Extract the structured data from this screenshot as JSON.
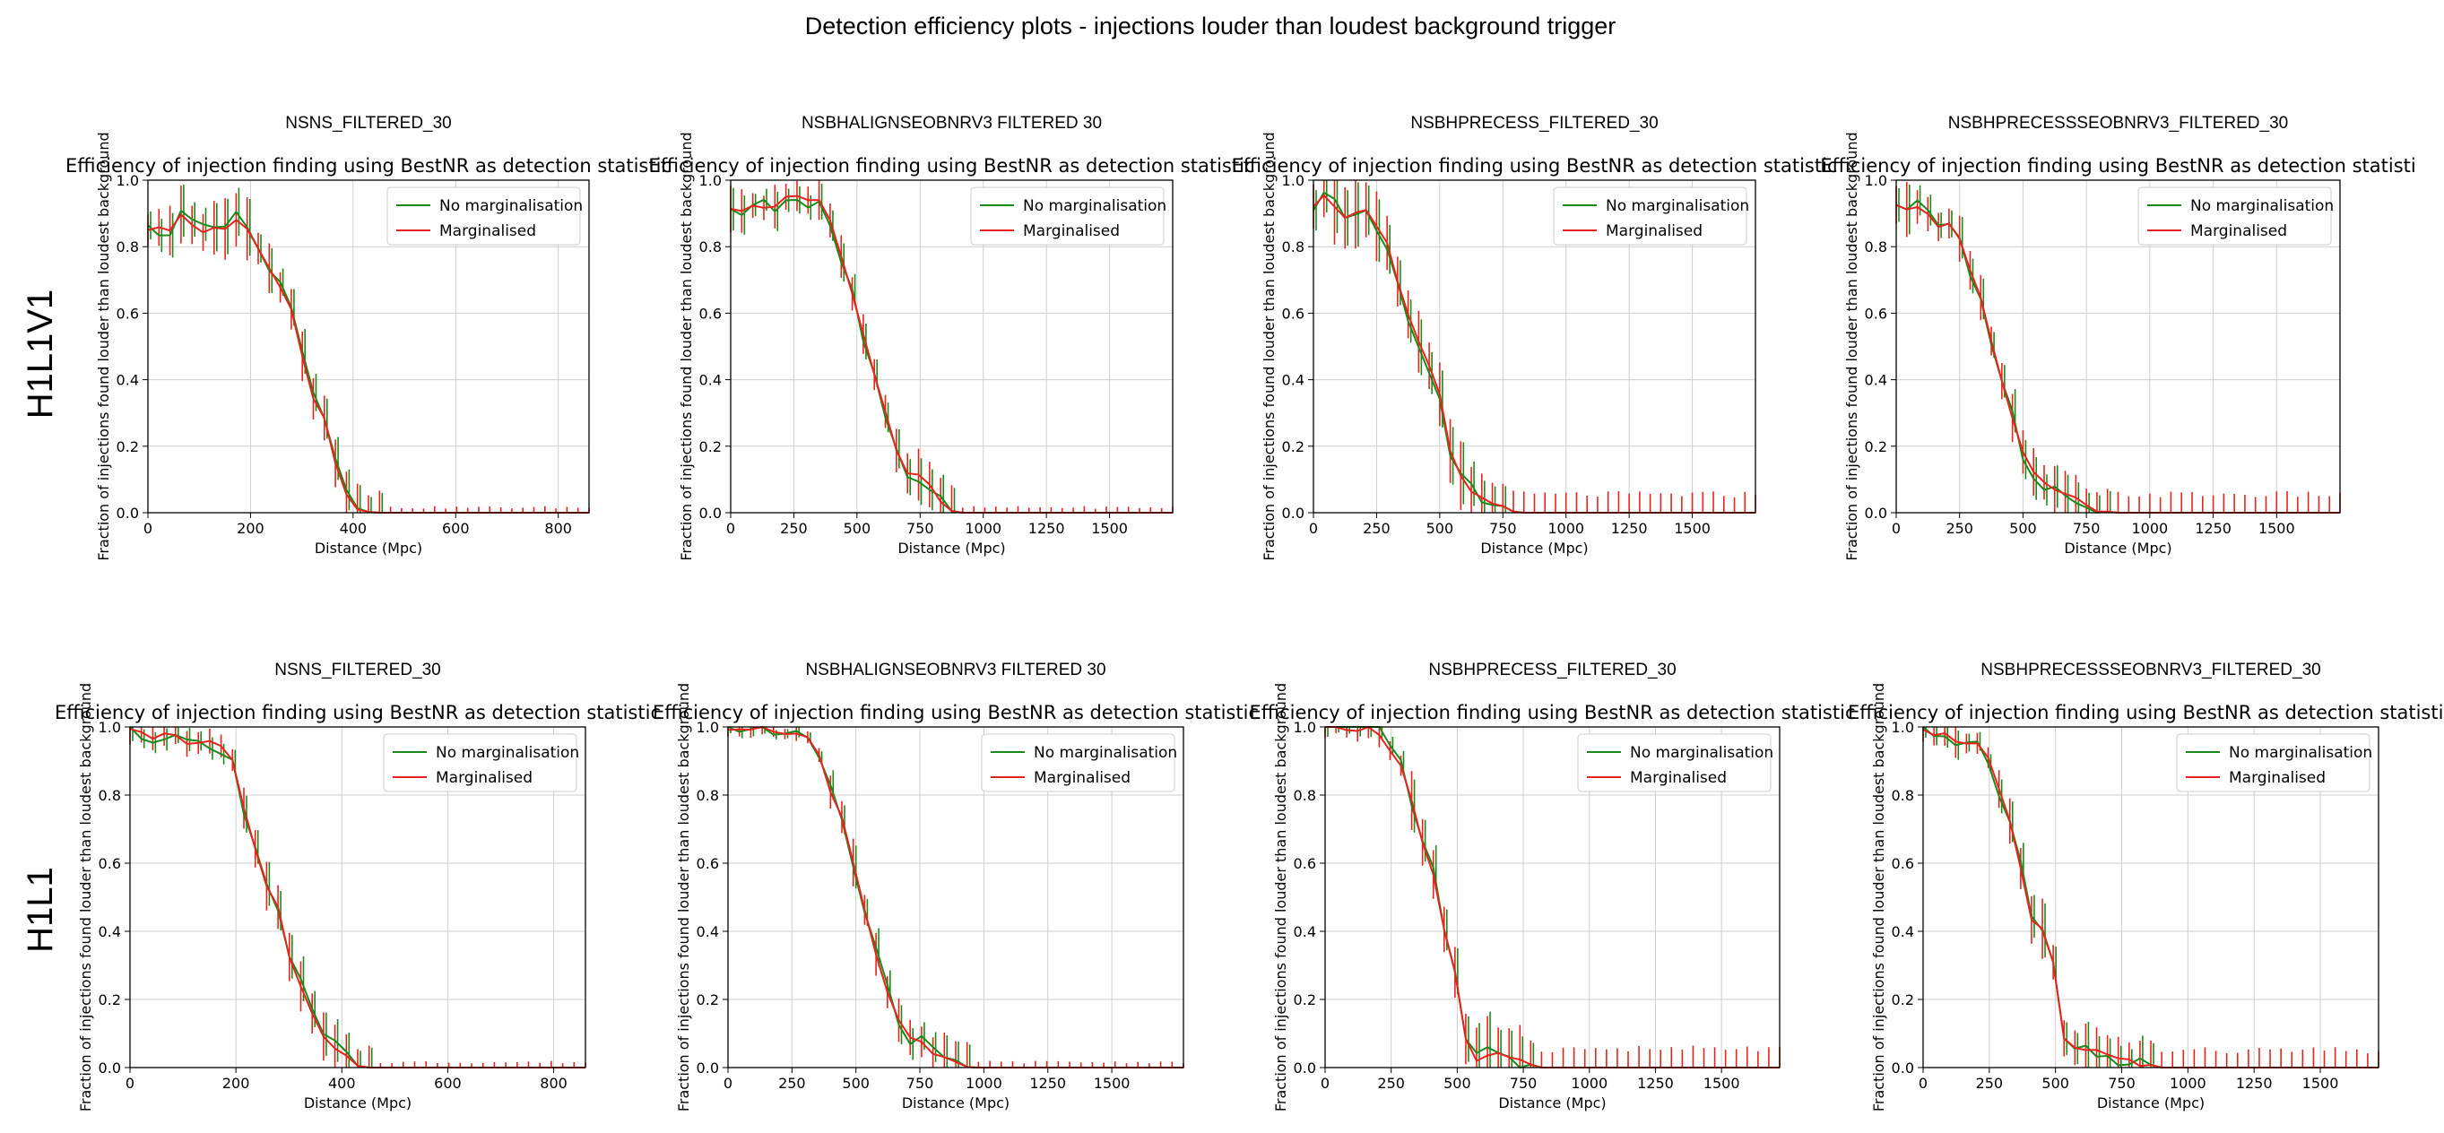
{
  "figure": {
    "title": "Detection efficiency plots - injections louder than loudest background trigger",
    "row_labels": [
      "H1L1V1",
      "H1L1"
    ]
  },
  "colors": {
    "no_marginalisation": "#1a8a1a",
    "marginalised": "#e8231d"
  },
  "chart_data": [
    {
      "type": "line",
      "row": "H1L1V1",
      "panel_title": "NSNS_FILTERED_30",
      "title": "Efficiency of injection finding using BestNR as detection statistic",
      "xlabel": "Distance (Mpc)",
      "ylabel": "Fraction of injections found louder than loudest background",
      "xlim": [
        0,
        860
      ],
      "ylim": [
        0,
        1.0
      ],
      "xticks": [
        0,
        200,
        400,
        600,
        800
      ],
      "yticks": [
        0.0,
        0.2,
        0.4,
        0.6,
        0.8,
        1.0
      ],
      "legend": "top-right",
      "grid": true,
      "x_max_data": 860,
      "n_points": 40,
      "curve": [
        [
          0,
          0.86
        ],
        [
          20,
          0.85
        ],
        [
          40,
          0.85
        ],
        [
          60,
          0.9
        ],
        [
          80,
          0.88
        ],
        [
          100,
          0.84
        ],
        [
          120,
          0.85
        ],
        [
          140,
          0.86
        ],
        [
          160,
          0.86
        ],
        [
          180,
          0.9
        ],
        [
          200,
          0.83
        ],
        [
          220,
          0.77
        ],
        [
          240,
          0.72
        ],
        [
          260,
          0.68
        ],
        [
          280,
          0.6
        ],
        [
          300,
          0.47
        ],
        [
          320,
          0.35
        ],
        [
          340,
          0.3
        ],
        [
          360,
          0.18
        ],
        [
          380,
          0.07
        ],
        [
          400,
          0.02
        ],
        [
          420,
          0.005
        ],
        [
          440,
          0.0
        ],
        [
          860,
          0.0
        ]
      ],
      "errors": {
        "pre": 0.08,
        "mid": 0.06,
        "post": 0.012,
        "post_noise": 0.008
      },
      "series": [
        {
          "name": "No marginalisation"
        },
        {
          "name": "Marginalised"
        }
      ]
    },
    {
      "type": "line",
      "row": "H1L1V1",
      "panel_title": "NSBHALIGNSEOBNRV3 FILTERED 30",
      "title": "Efficiency of injection finding using BestNR as detection statistic",
      "xlabel": "Distance (Mpc)",
      "ylabel": "Fraction of injections found louder than loudest background",
      "xlim": [
        0,
        1750
      ],
      "ylim": [
        0,
        1.0
      ],
      "xticks": [
        0,
        250,
        500,
        750,
        1000,
        1250,
        1500
      ],
      "yticks": [
        0.0,
        0.2,
        0.4,
        0.6,
        0.8,
        1.0
      ],
      "legend": "top-right",
      "grid": true,
      "x_max_data": 1750,
      "n_points": 40,
      "curve": [
        [
          0,
          0.92
        ],
        [
          50,
          0.9
        ],
        [
          100,
          0.93
        ],
        [
          150,
          0.91
        ],
        [
          200,
          0.94
        ],
        [
          250,
          0.95
        ],
        [
          300,
          0.94
        ],
        [
          350,
          0.94
        ],
        [
          400,
          0.87
        ],
        [
          450,
          0.75
        ],
        [
          500,
          0.6
        ],
        [
          550,
          0.47
        ],
        [
          600,
          0.33
        ],
        [
          650,
          0.2
        ],
        [
          700,
          0.12
        ],
        [
          750,
          0.12
        ],
        [
          800,
          0.06
        ],
        [
          850,
          0.01
        ],
        [
          900,
          0.0
        ],
        [
          1750,
          0.0
        ]
      ],
      "errors": {
        "pre": 0.06,
        "mid": 0.06,
        "post": 0.012,
        "post_noise": 0.008
      },
      "series": [
        {
          "name": "No marginalisation"
        },
        {
          "name": "Marginalised"
        }
      ]
    },
    {
      "type": "line",
      "row": "H1L1V1",
      "panel_title": "NSBHPRECESS_FILTERED_30",
      "title": "Efficiency of injection finding using BestNR as detection statistic",
      "xlabel": "Distance (Mpc)",
      "ylabel": "Fraction of injections found louder than loudest background",
      "xlim": [
        0,
        1750
      ],
      "ylim": [
        0,
        1.0
      ],
      "xticks": [
        0,
        250,
        500,
        750,
        1000,
        1250,
        1500
      ],
      "yticks": [
        0.0,
        0.2,
        0.4,
        0.6,
        0.8,
        1.0
      ],
      "legend": "top-right",
      "grid": true,
      "x_max_data": 1750,
      "n_points": 42,
      "curve": [
        [
          0,
          0.93
        ],
        [
          50,
          0.97
        ],
        [
          100,
          0.9
        ],
        [
          150,
          0.88
        ],
        [
          200,
          0.92
        ],
        [
          250,
          0.86
        ],
        [
          300,
          0.8
        ],
        [
          350,
          0.64
        ],
        [
          400,
          0.55
        ],
        [
          450,
          0.45
        ],
        [
          500,
          0.35
        ],
        [
          550,
          0.16
        ],
        [
          600,
          0.08
        ],
        [
          650,
          0.04
        ],
        [
          700,
          0.03
        ],
        [
          750,
          0.02
        ],
        [
          800,
          0.0
        ],
        [
          1750,
          0.0
        ]
      ],
      "errors": {
        "pre": 0.1,
        "mid": 0.08,
        "post": 0.045,
        "post_noise": 0.02
      },
      "series": [
        {
          "name": "No marginalisation"
        },
        {
          "name": "Marginalised"
        }
      ]
    },
    {
      "type": "line",
      "row": "H1L1V1",
      "panel_title": "NSBHPRECESSSEOBNRV3_FILTERED_30",
      "title": "Efficiency of injection finding using BestNR as detection statisti",
      "xlabel": "Distance (Mpc)",
      "ylabel": "Fraction of injections found louder than loudest background",
      "xlim": [
        0,
        1750
      ],
      "ylim": [
        0,
        1.0
      ],
      "xticks": [
        0,
        250,
        500,
        750,
        1000,
        1250,
        1500
      ],
      "yticks": [
        0.0,
        0.2,
        0.4,
        0.6,
        0.8,
        1.0
      ],
      "legend": "top-right",
      "grid": true,
      "x_max_data": 1750,
      "n_points": 42,
      "curve": [
        [
          0,
          0.93
        ],
        [
          50,
          0.91
        ],
        [
          100,
          0.93
        ],
        [
          150,
          0.85
        ],
        [
          200,
          0.87
        ],
        [
          250,
          0.82
        ],
        [
          300,
          0.72
        ],
        [
          350,
          0.6
        ],
        [
          400,
          0.45
        ],
        [
          450,
          0.3
        ],
        [
          500,
          0.18
        ],
        [
          550,
          0.12
        ],
        [
          600,
          0.09
        ],
        [
          650,
          0.06
        ],
        [
          700,
          0.05
        ],
        [
          750,
          0.03
        ],
        [
          800,
          0.01
        ],
        [
          850,
          0.0
        ],
        [
          1750,
          0.0
        ]
      ],
      "errors": {
        "pre": 0.07,
        "mid": 0.06,
        "post": 0.045,
        "post_noise": 0.02
      },
      "series": [
        {
          "name": "No marginalisation"
        },
        {
          "name": "Marginalised"
        }
      ]
    },
    {
      "type": "line",
      "row": "H1L1",
      "panel_title": "NSNS_FILTERED_30",
      "title": "Efficiency of injection finding using BestNR as detection statistic",
      "xlabel": "Distance (Mpc)",
      "ylabel": "Fraction of injections found louder than loudest background",
      "xlim": [
        0,
        860
      ],
      "ylim": [
        0,
        1.0
      ],
      "xticks": [
        0,
        200,
        400,
        600,
        800
      ],
      "yticks": [
        0.0,
        0.2,
        0.4,
        0.6,
        0.8,
        1.0
      ],
      "legend": "top-right",
      "grid": true,
      "x_max_data": 860,
      "n_points": 40,
      "curve": [
        [
          0,
          1.0
        ],
        [
          20,
          0.98
        ],
        [
          40,
          0.96
        ],
        [
          60,
          0.99
        ],
        [
          80,
          0.99
        ],
        [
          100,
          0.97
        ],
        [
          120,
          0.93
        ],
        [
          140,
          0.96
        ],
        [
          160,
          0.96
        ],
        [
          180,
          0.95
        ],
        [
          200,
          0.88
        ],
        [
          220,
          0.72
        ],
        [
          240,
          0.62
        ],
        [
          260,
          0.52
        ],
        [
          280,
          0.48
        ],
        [
          300,
          0.33
        ],
        [
          320,
          0.25
        ],
        [
          340,
          0.18
        ],
        [
          360,
          0.1
        ],
        [
          380,
          0.07
        ],
        [
          400,
          0.04
        ],
        [
          420,
          0.01
        ],
        [
          440,
          0.0
        ],
        [
          860,
          0.0
        ]
      ],
      "errors": {
        "pre": 0.04,
        "mid": 0.06,
        "post": 0.012,
        "post_noise": 0.008
      },
      "series": [
        {
          "name": "No marginalisation"
        },
        {
          "name": "Marginalised"
        }
      ]
    },
    {
      "type": "line",
      "row": "H1L1",
      "panel_title": "NSBHALIGNSEOBNRV3 FILTERED 30",
      "title": "Efficiency of injection finding using BestNR as detection statistic",
      "xlabel": "Distance (Mpc)",
      "ylabel": "Fraction of injections found louder than loudest background",
      "xlim": [
        0,
        1780
      ],
      "ylim": [
        0,
        1.0
      ],
      "xticks": [
        0,
        250,
        500,
        750,
        1000,
        1250,
        1500
      ],
      "yticks": [
        0.0,
        0.2,
        0.4,
        0.6,
        0.8,
        1.0
      ],
      "legend": "top-right",
      "grid": true,
      "x_max_data": 1780,
      "n_points": 40,
      "curve": [
        [
          0,
          1.0
        ],
        [
          100,
          1.0
        ],
        [
          200,
          0.99
        ],
        [
          250,
          0.98
        ],
        [
          300,
          0.97
        ],
        [
          350,
          0.93
        ],
        [
          400,
          0.8
        ],
        [
          450,
          0.72
        ],
        [
          500,
          0.57
        ],
        [
          550,
          0.4
        ],
        [
          600,
          0.28
        ],
        [
          650,
          0.16
        ],
        [
          700,
          0.09
        ],
        [
          750,
          0.08
        ],
        [
          800,
          0.05
        ],
        [
          850,
          0.02
        ],
        [
          900,
          0.005
        ],
        [
          950,
          0.0
        ],
        [
          1780,
          0.0
        ]
      ],
      "errors": {
        "pre": 0.02,
        "mid": 0.06,
        "post": 0.012,
        "post_noise": 0.008
      },
      "series": [
        {
          "name": "No marginalisation"
        },
        {
          "name": "Marginalised"
        }
      ]
    },
    {
      "type": "line",
      "row": "H1L1",
      "panel_title": "NSBHPRECESS_FILTERED_30",
      "title": "Efficiency of injection finding using BestNR as detection statistic",
      "xlabel": "Distance (Mpc)",
      "ylabel": "Fraction of injections found louder than loudest background",
      "xlim": [
        0,
        1720
      ],
      "ylim": [
        0,
        1.0
      ],
      "xticks": [
        0,
        250,
        500,
        750,
        1000,
        1250,
        1500
      ],
      "yticks": [
        0.0,
        0.2,
        0.4,
        0.6,
        0.8,
        1.0
      ],
      "legend": "top-right",
      "grid": true,
      "x_max_data": 1720,
      "n_points": 42,
      "curve": [
        [
          0,
          1.0
        ],
        [
          100,
          1.0
        ],
        [
          200,
          0.99
        ],
        [
          250,
          0.93
        ],
        [
          300,
          0.88
        ],
        [
          350,
          0.7
        ],
        [
          400,
          0.6
        ],
        [
          450,
          0.4
        ],
        [
          500,
          0.25
        ],
        [
          525,
          0.1
        ],
        [
          550,
          0.02
        ],
        [
          600,
          0.02
        ],
        [
          650,
          0.05
        ],
        [
          700,
          0.02
        ],
        [
          750,
          0.02
        ],
        [
          800,
          0.0
        ],
        [
          1720,
          0.0
        ]
      ],
      "errors": {
        "pre": 0.03,
        "mid": 0.09,
        "post": 0.045,
        "post_noise": 0.02
      },
      "series": [
        {
          "name": "No marginalisation"
        },
        {
          "name": "Marginalised"
        }
      ]
    },
    {
      "type": "line",
      "row": "H1L1",
      "panel_title": "NSBHPRECESSSEOBNRV3_FILTERED_30",
      "title": "Efficiency of injection finding using BestNR as detection statistic",
      "xlabel": "Distance (Mpc)",
      "ylabel": "Fraction of injections found louder than loudest background",
      "xlim": [
        0,
        1720
      ],
      "ylim": [
        0,
        1.0
      ],
      "xticks": [
        0,
        250,
        500,
        750,
        1000,
        1250,
        1500
      ],
      "yticks": [
        0.0,
        0.2,
        0.4,
        0.6,
        0.8,
        1.0
      ],
      "legend": "top-right",
      "grid": true,
      "x_max_data": 1720,
      "n_points": 42,
      "curve": [
        [
          0,
          1.0
        ],
        [
          50,
          0.98
        ],
        [
          100,
          0.97
        ],
        [
          150,
          0.94
        ],
        [
          200,
          0.96
        ],
        [
          250,
          0.9
        ],
        [
          300,
          0.8
        ],
        [
          350,
          0.65
        ],
        [
          400,
          0.45
        ],
        [
          450,
          0.4
        ],
        [
          500,
          0.3
        ],
        [
          525,
          0.1
        ],
        [
          550,
          0.05
        ],
        [
          600,
          0.05
        ],
        [
          650,
          0.05
        ],
        [
          700,
          0.03
        ],
        [
          750,
          0.02
        ],
        [
          800,
          0.01
        ],
        [
          850,
          0.01
        ],
        [
          900,
          0.0
        ],
        [
          1720,
          0.0
        ]
      ],
      "errors": {
        "pre": 0.04,
        "mid": 0.07,
        "post": 0.04,
        "post_noise": 0.02
      },
      "series": [
        {
          "name": "No marginalisation"
        },
        {
          "name": "Marginalised"
        }
      ]
    }
  ]
}
